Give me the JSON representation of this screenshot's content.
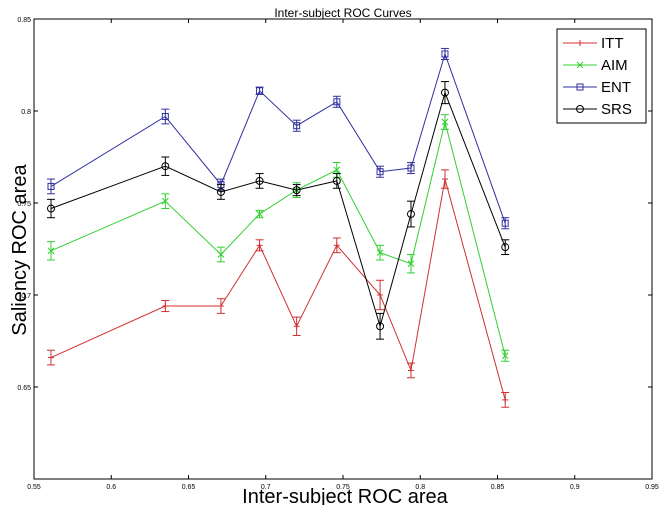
{
  "chart_data": {
    "type": "line",
    "title": "Inter-subject ROC Curves",
    "xlabel": "Inter-subject ROC area",
    "ylabel": "Saliency ROC area",
    "xlim": [
      0.55,
      0.95
    ],
    "ylim": [
      0.6,
      0.85
    ],
    "xticks": [
      0.55,
      0.6,
      0.65,
      0.7,
      0.75,
      0.8,
      0.85,
      0.9,
      0.95
    ],
    "xtick_labels": [
      "0.55",
      "0.6",
      "0.65",
      "0.7",
      "0.75",
      "0.8",
      "0.85",
      "0.9",
      "0.95"
    ],
    "yticks": [
      0.65,
      0.7,
      0.75,
      0.8,
      0.85
    ],
    "ytick_labels": [
      "0.65",
      "0.7",
      "0.75",
      "0.8",
      "0.85"
    ],
    "grid": false,
    "legend_position": "top-right",
    "x": [
      0.561,
      0.635,
      0.671,
      0.696,
      0.72,
      0.746,
      0.774,
      0.794,
      0.816,
      0.855
    ],
    "series": [
      {
        "name": "ITT",
        "color": "#d03030",
        "marker": "plus",
        "values": [
          0.666,
          0.694,
          0.694,
          0.727,
          0.683,
          0.727,
          0.7,
          0.659,
          0.763,
          0.643
        ],
        "errors": [
          0.004,
          0.003,
          0.004,
          0.003,
          0.005,
          0.004,
          0.008,
          0.004,
          0.005,
          0.004
        ]
      },
      {
        "name": "AIM",
        "color": "#30d030",
        "marker": "x",
        "values": [
          0.724,
          0.751,
          0.722,
          0.744,
          0.757,
          0.768,
          0.723,
          0.717,
          0.794,
          0.667
        ],
        "errors": [
          0.005,
          0.004,
          0.004,
          0.002,
          0.004,
          0.004,
          0.004,
          0.005,
          0.004,
          0.003
        ]
      },
      {
        "name": "ENT",
        "color": "#3030a0",
        "marker": "square",
        "values": [
          0.759,
          0.797,
          0.76,
          0.811,
          0.792,
          0.805,
          0.767,
          0.769,
          0.831,
          0.739
        ],
        "errors": [
          0.004,
          0.004,
          0.003,
          0.002,
          0.003,
          0.003,
          0.003,
          0.003,
          0.003,
          0.003
        ]
      },
      {
        "name": "SRS",
        "color": "#000000",
        "marker": "circle",
        "values": [
          0.747,
          0.77,
          0.756,
          0.762,
          0.757,
          0.762,
          0.683,
          0.744,
          0.81,
          0.726
        ],
        "errors": [
          0.005,
          0.005,
          0.004,
          0.004,
          0.003,
          0.004,
          0.007,
          0.007,
          0.006,
          0.004
        ]
      }
    ]
  }
}
